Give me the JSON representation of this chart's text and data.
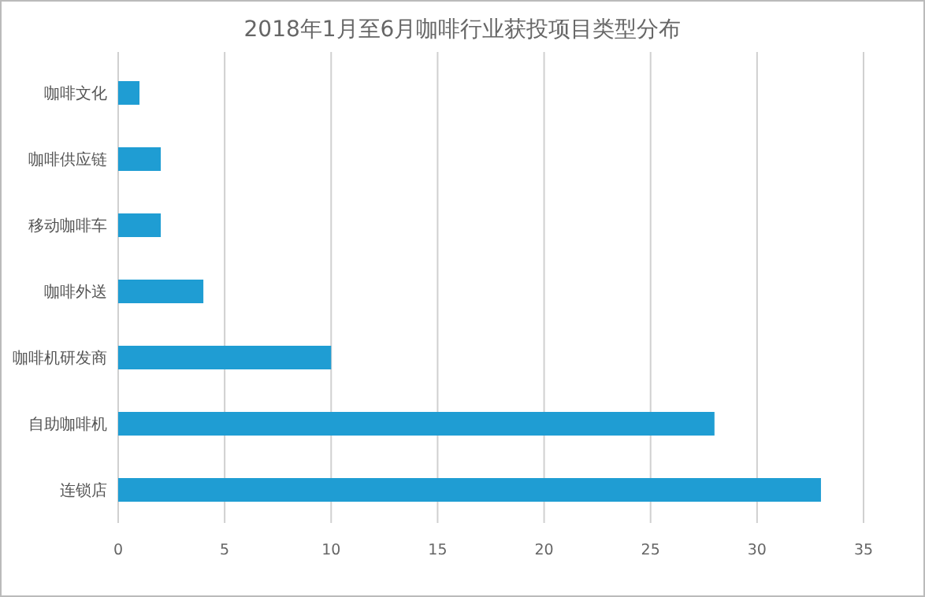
{
  "chart_data": {
    "type": "bar",
    "orientation": "horizontal",
    "title": "2018年1月至6月咖啡行业获投项目类型分布",
    "categories": [
      "咖啡文化",
      "咖啡供应链",
      "移动咖啡车",
      "咖啡外送",
      "咖啡机研发商",
      "自助咖啡机",
      "连锁店"
    ],
    "values": [
      1,
      2,
      2,
      4,
      10,
      28,
      33
    ],
    "color": "#1f9dd3",
    "xlim": [
      0,
      35
    ],
    "xticks": [
      0,
      5,
      10,
      15,
      20,
      25,
      30,
      35
    ],
    "grid": "x"
  }
}
